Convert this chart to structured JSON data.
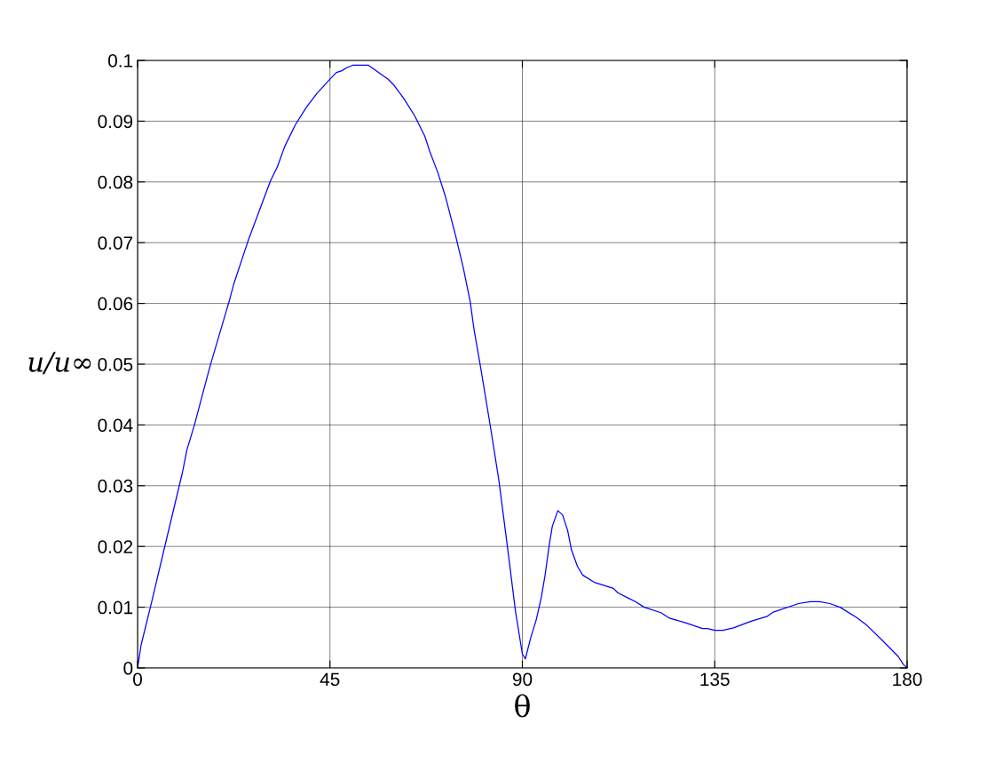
{
  "chart_data": {
    "type": "line",
    "xlabel": "θ",
    "ylabel": "u/u∞",
    "x": [
      0,
      0.83,
      3.1,
      6.4,
      10.5,
      11.5,
      13.3,
      17.0,
      21.4,
      22.5,
      25.8,
      28.7,
      31.1,
      32.7,
      34.4,
      36.9,
      39.5,
      42.0,
      43.3,
      44.7,
      46.5,
      47.8,
      48.9,
      50.3,
      54.0,
      55.4,
      58.6,
      60.0,
      62.3,
      64.8,
      67.2,
      68.3,
      70.2,
      72.0,
      74.3,
      76.2,
      77.8,
      78.7,
      80.3,
      82.6,
      84.5,
      86.3,
      88.4,
      90.0,
      90.7,
      92.0,
      93.2,
      94.4,
      95.3,
      96.3,
      97.0,
      98.3,
      99.4,
      100.6,
      101.5,
      102.9,
      104.1,
      106.8,
      111.3,
      112.3,
      114.8,
      116.5,
      118.5,
      122.4,
      124.4,
      128.3,
      132.1,
      133.3,
      135.0,
      136.9,
      139.4,
      143.5,
      147.3,
      148.7,
      154.6,
      157.4,
      159.5,
      161.9,
      164.3,
      168.2,
      170.6,
      174.1,
      177.9,
      179.1,
      180
    ],
    "series": [
      {
        "color": "#0000ff",
        "values": [
          0,
          0.0038,
          0.0103,
          0.0201,
          0.0322,
          0.0358,
          0.04,
          0.0498,
          0.0603,
          0.0632,
          0.0702,
          0.0757,
          0.0802,
          0.0825,
          0.0858,
          0.0894,
          0.0923,
          0.0946,
          0.0956,
          0.0967,
          0.098,
          0.0983,
          0.0988,
          0.0992,
          0.0992,
          0.0985,
          0.0969,
          0.0959,
          0.0937,
          0.0909,
          0.0875,
          0.0851,
          0.0816,
          0.0776,
          0.0714,
          0.0658,
          0.0603,
          0.0557,
          0.0492,
          0.0394,
          0.0309,
          0.0211,
          0.0093,
          0.0023,
          0.0015,
          0.0051,
          0.0078,
          0.0115,
          0.0152,
          0.0203,
          0.0233,
          0.0259,
          0.0252,
          0.0226,
          0.0194,
          0.0167,
          0.0153,
          0.0141,
          0.0131,
          0.0124,
          0.0115,
          0.0109,
          0.01,
          0.0091,
          0.0082,
          0.0074,
          0.0065,
          0.0065,
          0.0062,
          0.0062,
          0.0066,
          0.0077,
          0.0085,
          0.0092,
          0.0106,
          0.0109,
          0.0109,
          0.0106,
          0.01,
          0.0083,
          0.007,
          0.0046,
          0.0019,
          0.0006,
          0
        ]
      }
    ],
    "xlim": [
      0,
      180
    ],
    "xticks": [
      0,
      45,
      90,
      135,
      180
    ],
    "ylim": [
      0,
      0.1
    ],
    "yticks": [
      0,
      0.01,
      0.02,
      0.03,
      0.04,
      0.05,
      0.06,
      0.07,
      0.08,
      0.09,
      0.1
    ],
    "grid": true,
    "marker": "none",
    "line_style": "solid"
  }
}
